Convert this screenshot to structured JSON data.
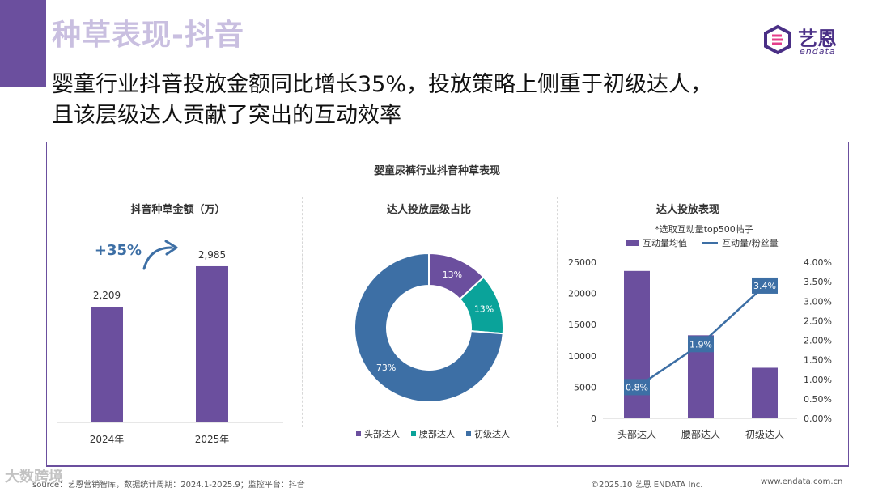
{
  "header": {
    "section_title": "种草表现-抖音",
    "headline_line1": "婴童行业抖音投放金额同比增长35%，投放策略上侧重于初级达人，",
    "headline_line2": "且该层级达人贡献了突出的互动效率"
  },
  "logo": {
    "cn": "艺恩",
    "en": "endata"
  },
  "main_title": "婴童尿裤行业抖音种草表现",
  "colors": {
    "accent": "#6b4f9e",
    "bar_purple": "#6b4f9e",
    "line_blue": "#3d6fa5",
    "donut_purple": "#6b4f9e",
    "donut_teal": "#0aa39a",
    "donut_blue": "#3d6fa5",
    "growth_text": "#3d6fa5"
  },
  "chart_data": [
    {
      "type": "bar",
      "title": "抖音种草金额（万）",
      "categories": [
        "2024年",
        "2025年"
      ],
      "values": [
        2209,
        2985
      ],
      "value_labels": [
        "2,209",
        "2,985"
      ],
      "annotation": "+35%"
    },
    {
      "type": "pie",
      "title": "达人投放层级占比",
      "categories": [
        "头部达人",
        "腰部达人",
        "初级达人"
      ],
      "values": [
        13,
        13,
        73
      ],
      "value_labels": [
        "13%",
        "13%",
        "73%"
      ]
    },
    {
      "type": "bar",
      "title": "达人投放表现",
      "note": "*选取互动量top500帖子",
      "categories": [
        "头部达人",
        "腰部达人",
        "初级达人"
      ],
      "series": [
        {
          "name": "互动量均值",
          "type": "bar",
          "axis": "left",
          "values": [
            23600,
            13300,
            8100
          ]
        },
        {
          "name": "互动量/粉丝量",
          "type": "line",
          "axis": "right",
          "values": [
            0.8,
            1.9,
            3.4
          ],
          "value_labels": [
            "0.8%",
            "1.9%",
            "3.4%"
          ]
        }
      ],
      "y_left": {
        "ylim": [
          0,
          25000
        ],
        "ticks": [
          "0",
          "5000",
          "10000",
          "15000",
          "20000",
          "25000"
        ]
      },
      "y_right": {
        "ylim": [
          0,
          4
        ],
        "ticks": [
          "0.00%",
          "0.50%",
          "1.00%",
          "1.50%",
          "2.00%",
          "2.50%",
          "3.00%",
          "3.50%",
          "4.00%"
        ]
      }
    }
  ],
  "footer": {
    "source": "source：艺恩营销智库，数据统计周期：2024.1-2025.9；监控平台：抖音",
    "copyright": "©2025.10  艺恩 ENDATA Inc.",
    "url": "www.endata.com.cn",
    "watermark": "大数跨境"
  }
}
